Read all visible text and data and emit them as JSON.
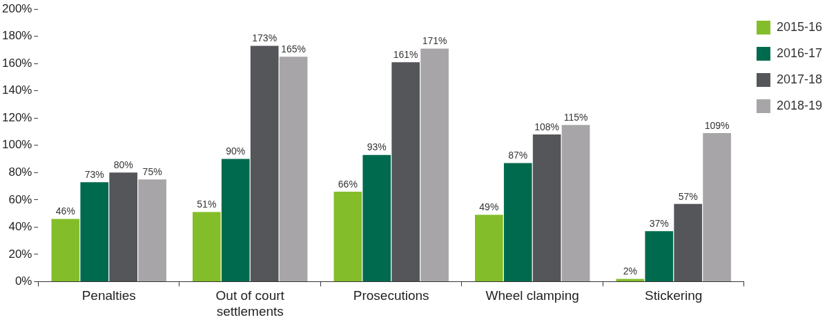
{
  "chart_data": {
    "type": "bar",
    "categories": [
      "Penalties",
      "Out of court settlements",
      "Prosecutions",
      "Wheel clamping",
      "Stickering"
    ],
    "series": [
      {
        "name": "2015-16",
        "color": "#84bd2a",
        "values": [
          46,
          51,
          66,
          49,
          2
        ],
        "value_labels": [
          "46%",
          "51%",
          "66%",
          "49%",
          "2%"
        ]
      },
      {
        "name": "2016-17",
        "color": "#006a4e",
        "values": [
          73,
          90,
          93,
          87,
          37
        ],
        "value_labels": [
          "73%",
          "90%",
          "93%",
          "87%",
          "37%"
        ]
      },
      {
        "name": "2017-18",
        "color": "#54565a",
        "values": [
          80,
          173,
          161,
          108,
          57
        ],
        "value_labels": [
          "80%",
          "173%",
          "161%",
          "108%",
          "57%"
        ]
      },
      {
        "name": "2018-19",
        "color": "#a7a5a8",
        "values": [
          75,
          165,
          171,
          115,
          109
        ],
        "value_labels": [
          "75%",
          "165%",
          "171%",
          "115%",
          "109%"
        ]
      }
    ],
    "ylim": [
      0,
      200
    ],
    "yticks": [
      {
        "value": 0,
        "label": "0%"
      },
      {
        "value": 20,
        "label": "20%"
      },
      {
        "value": 40,
        "label": "40%"
      },
      {
        "value": 60,
        "label": "60%"
      },
      {
        "value": 80,
        "label": "80%"
      },
      {
        "value": 100,
        "label": "100%"
      },
      {
        "value": 120,
        "label": "120%"
      },
      {
        "value": 140,
        "label": "140%"
      },
      {
        "value": 160,
        "label": "160%"
      },
      {
        "value": 180,
        "label": "180%"
      },
      {
        "value": 200,
        "label": "200%"
      }
    ],
    "grid": false,
    "legend": "top right"
  }
}
